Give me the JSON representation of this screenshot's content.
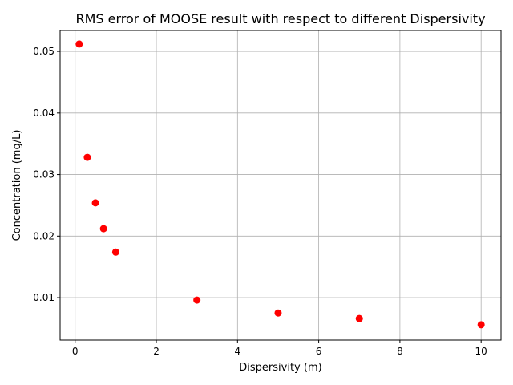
{
  "chart_data": {
    "type": "scatter",
    "title": "RMS error of MOOSE result with respect to different Dispersivity",
    "xlabel": "Dispersivity (m)",
    "ylabel": "Concentration (mg/L)",
    "xlim": [
      -0.37,
      10.49
    ],
    "ylim": [
      0.0031,
      0.0534
    ],
    "xticks": [
      0,
      2,
      4,
      6,
      8,
      10
    ],
    "xtick_labels": [
      "0",
      "2",
      "4",
      "6",
      "8",
      "10"
    ],
    "yticks": [
      0.01,
      0.02,
      0.03,
      0.04,
      0.05
    ],
    "ytick_labels": [
      "0.01",
      "0.02",
      "0.03",
      "0.04",
      "0.05"
    ],
    "grid": true,
    "marker_color": "#ff0000",
    "grid_color": "#b0b0b0",
    "x": [
      0.1,
      0.3,
      0.5,
      0.7,
      1.0,
      3.0,
      5.0,
      7.0,
      10.0
    ],
    "y": [
      0.0512,
      0.0328,
      0.0254,
      0.0212,
      0.0174,
      0.0096,
      0.0075,
      0.0066,
      0.0056
    ]
  }
}
